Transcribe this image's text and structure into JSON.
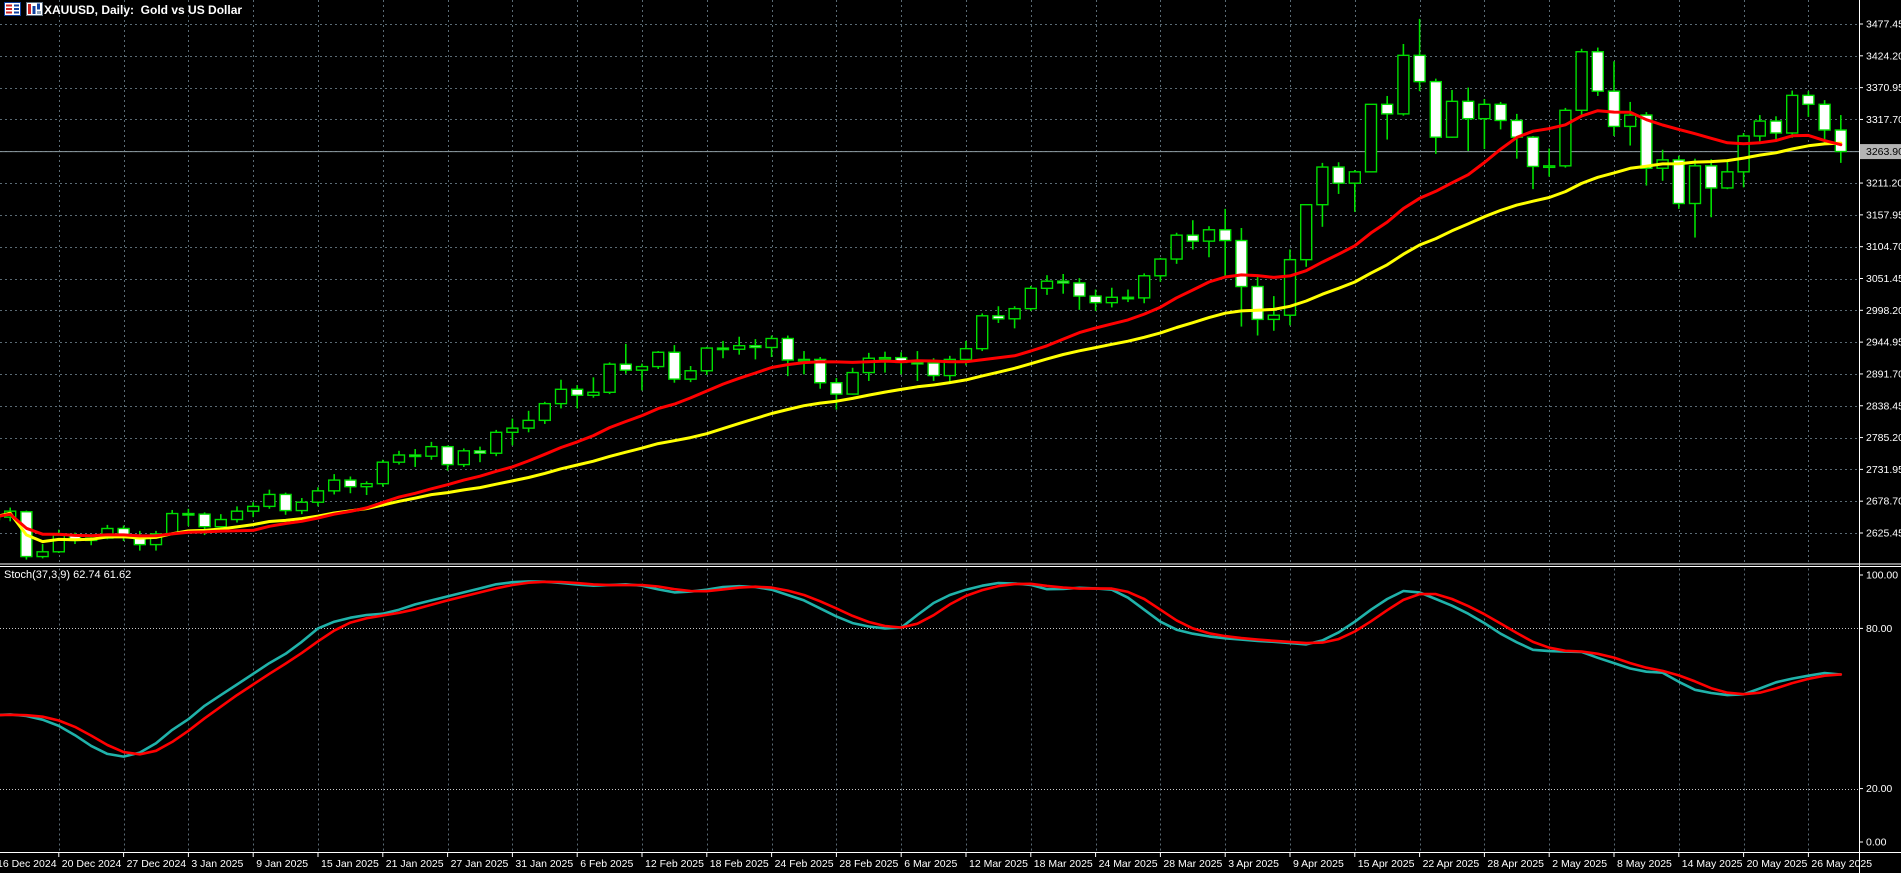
{
  "window": {
    "title": "XAUUSD, Daily:  Gold vs US Dollar",
    "symbol": "XAUUSD",
    "timeframe": "Daily",
    "description": "Gold vs US Dollar"
  },
  "colors": {
    "background": "#000000",
    "grid": "#5A6A74",
    "level_line": "#C8C8C8",
    "axis_line": "#FFFFFF",
    "axis_text": "#FFFFFF",
    "candle_border": "#00DE00",
    "bull_fill": "#000000",
    "bear_fill": "#FFFFFF",
    "ma_fast": "#FF0000",
    "ma_slow": "#FFFF00",
    "stoch_main": "#20B2AA",
    "stoch_signal": "#FF0000",
    "price_line": "#8C9AA0",
    "price_tag_bg": "#B4B4B4",
    "price_tag_text": "#000000"
  },
  "chart_data": {
    "type": "candlestick",
    "title": "XAUUSD, Daily:  Gold vs US Dollar",
    "current_price": 3263.9,
    "price_axis_labels": [
      3477.45,
      3424.2,
      3370.95,
      3317.7,
      3264.45,
      3211.2,
      3157.95,
      3104.7,
      3051.45,
      2998.2,
      2944.95,
      2891.7,
      2838.45,
      2785.2,
      2731.95,
      2678.7,
      2625.45
    ],
    "price_axis_range": [
      2625.45,
      3477.45
    ],
    "date_labels": [
      "16 Dec 2024",
      "20 Dec 2024",
      "27 Dec 2024",
      "3 Jan 2025",
      "9 Jan 2025",
      "15 Jan 2025",
      "21 Jan 2025",
      "27 Jan 2025",
      "31 Jan 2025",
      "6 Feb 2025",
      "12 Feb 2025",
      "18 Feb 2025",
      "24 Feb 2025",
      "28 Feb 2025",
      "6 Mar 2025",
      "12 Mar 2025",
      "18 Mar 2025",
      "24 Mar 2025",
      "28 Mar 2025",
      "3 Apr 2025",
      "9 Apr 2025",
      "15 Apr 2025",
      "22 Apr 2025",
      "28 Apr 2025",
      "2 May 2025",
      "8 May 2025",
      "14 May 2025",
      "20 May 2025",
      "26 May 2025"
    ],
    "date_label_indices": [
      0,
      4,
      8,
      12,
      16,
      20,
      24,
      28,
      32,
      36,
      40,
      44,
      48,
      52,
      56,
      60,
      64,
      68,
      72,
      76,
      80,
      84,
      88,
      92,
      96,
      100,
      104,
      108,
      112
    ],
    "candles_ohlc": [
      [
        2648,
        2664,
        2639,
        2652
      ],
      [
        2652,
        2668,
        2645,
        2662
      ],
      [
        2661,
        2663,
        2581,
        2586
      ],
      [
        2586,
        2607,
        2583,
        2594
      ],
      [
        2594,
        2631,
        2592,
        2622
      ],
      [
        2622,
        2626,
        2607,
        2613
      ],
      [
        2613,
        2621,
        2605,
        2617
      ],
      [
        2617,
        2639,
        2615,
        2633
      ],
      [
        2633,
        2638,
        2612,
        2621
      ],
      [
        2621,
        2629,
        2596,
        2606
      ],
      [
        2606,
        2629,
        2596,
        2624
      ],
      [
        2624,
        2664,
        2624,
        2658
      ],
      [
        2658,
        2666,
        2637,
        2657
      ],
      [
        2657,
        2660,
        2622,
        2636
      ],
      [
        2636,
        2657,
        2632,
        2648
      ],
      [
        2648,
        2670,
        2643,
        2662
      ],
      [
        2662,
        2677,
        2652,
        2670
      ],
      [
        2670,
        2698,
        2666,
        2690
      ],
      [
        2690,
        2693,
        2656,
        2663
      ],
      [
        2663,
        2684,
        2657,
        2677
      ],
      [
        2677,
        2702,
        2670,
        2696
      ],
      [
        2696,
        2724,
        2690,
        2714
      ],
      [
        2714,
        2720,
        2692,
        2703
      ],
      [
        2703,
        2712,
        2689,
        2708
      ],
      [
        2708,
        2748,
        2703,
        2744
      ],
      [
        2744,
        2763,
        2740,
        2756
      ],
      [
        2756,
        2766,
        2736,
        2754
      ],
      [
        2754,
        2778,
        2748,
        2770
      ],
      [
        2770,
        2772,
        2730,
        2740
      ],
      [
        2740,
        2767,
        2736,
        2763
      ],
      [
        2763,
        2770,
        2744,
        2759
      ],
      [
        2759,
        2798,
        2754,
        2794
      ],
      [
        2794,
        2817,
        2772,
        2801
      ],
      [
        2801,
        2830,
        2794,
        2814
      ],
      [
        2814,
        2845,
        2808,
        2842
      ],
      [
        2842,
        2882,
        2834,
        2866
      ],
      [
        2866,
        2873,
        2834,
        2856
      ],
      [
        2856,
        2886,
        2852,
        2861
      ],
      [
        2861,
        2911,
        2858,
        2908
      ],
      [
        2908,
        2942,
        2892,
        2898
      ],
      [
        2898,
        2909,
        2864,
        2904
      ],
      [
        2904,
        2930,
        2900,
        2928
      ],
      [
        2928,
        2940,
        2877,
        2883
      ],
      [
        2883,
        2905,
        2878,
        2897
      ],
      [
        2897,
        2937,
        2890,
        2935
      ],
      [
        2935,
        2947,
        2918,
        2933
      ],
      [
        2933,
        2954,
        2924,
        2939
      ],
      [
        2939,
        2950,
        2916,
        2936
      ],
      [
        2936,
        2956,
        2920,
        2951
      ],
      [
        2951,
        2956,
        2888,
        2915
      ],
      [
        2915,
        2930,
        2891,
        2916
      ],
      [
        2916,
        2920,
        2867,
        2877
      ],
      [
        2877,
        2885,
        2832,
        2858
      ],
      [
        2858,
        2902,
        2857,
        2894
      ],
      [
        2894,
        2927,
        2880,
        2918
      ],
      [
        2918,
        2929,
        2894,
        2919
      ],
      [
        2919,
        2928,
        2891,
        2911
      ],
      [
        2911,
        2930,
        2880,
        2910
      ],
      [
        2910,
        2918,
        2880,
        2889
      ],
      [
        2889,
        2922,
        2879,
        2916
      ],
      [
        2916,
        2947,
        2906,
        2934
      ],
      [
        2934,
        2993,
        2930,
        2989
      ],
      [
        2989,
        3005,
        2977,
        2984
      ],
      [
        2984,
        3005,
        2968,
        3001
      ],
      [
        3001,
        3039,
        2997,
        3035
      ],
      [
        3035,
        3057,
        3024,
        3047
      ],
      [
        3047,
        3059,
        3026,
        3044
      ],
      [
        3044,
        3052,
        2999,
        3022
      ],
      [
        3022,
        3033,
        2997,
        3011
      ],
      [
        3011,
        3036,
        3003,
        3020
      ],
      [
        3020,
        3033,
        3012,
        3019
      ],
      [
        3019,
        3060,
        3010,
        3056
      ],
      [
        3056,
        3086,
        3046,
        3084
      ],
      [
        3084,
        3128,
        3076,
        3124
      ],
      [
        3124,
        3149,
        3100,
        3114
      ],
      [
        3114,
        3139,
        3087,
        3133
      ],
      [
        3133,
        3168,
        3054,
        3115
      ],
      [
        3115,
        3136,
        2971,
        3038
      ],
      [
        3038,
        3055,
        2956,
        2983
      ],
      [
        2983,
        3022,
        2964,
        2990
      ],
      [
        2990,
        3100,
        2973,
        3083
      ],
      [
        3083,
        3176,
        3071,
        3175
      ],
      [
        3175,
        3245,
        3138,
        3238
      ],
      [
        3238,
        3246,
        3193,
        3211
      ],
      [
        3211,
        3233,
        3163,
        3230
      ],
      [
        3230,
        3343,
        3229,
        3343
      ],
      [
        3343,
        3357,
        3284,
        3327
      ],
      [
        3327,
        3444,
        3324,
        3425
      ],
      [
        3425,
        3486,
        3365,
        3381
      ],
      [
        3381,
        3386,
        3260,
        3288
      ],
      [
        3288,
        3367,
        3287,
        3348
      ],
      [
        3348,
        3371,
        3265,
        3319
      ],
      [
        3319,
        3352,
        3268,
        3343
      ],
      [
        3343,
        3347,
        3301,
        3316
      ],
      [
        3316,
        3327,
        3252,
        3288
      ],
      [
        3288,
        3290,
        3201,
        3239
      ],
      [
        3239,
        3269,
        3222,
        3240
      ],
      [
        3240,
        3337,
        3237,
        3333
      ],
      [
        3333,
        3436,
        3322,
        3431
      ],
      [
        3431,
        3438,
        3357,
        3365
      ],
      [
        3365,
        3415,
        3290,
        3306
      ],
      [
        3306,
        3347,
        3274,
        3325
      ],
      [
        3325,
        3330,
        3207,
        3236
      ],
      [
        3236,
        3267,
        3215,
        3250
      ],
      [
        3250,
        3257,
        3168,
        3177
      ],
      [
        3177,
        3252,
        3120,
        3240
      ],
      [
        3240,
        3251,
        3154,
        3203
      ],
      [
        3203,
        3249,
        3201,
        3230
      ],
      [
        3230,
        3295,
        3204,
        3290
      ],
      [
        3290,
        3325,
        3281,
        3315
      ],
      [
        3315,
        3323,
        3280,
        3295
      ],
      [
        3295,
        3366,
        3287,
        3358
      ],
      [
        3358,
        3365,
        3322,
        3343
      ],
      [
        3343,
        3350,
        3276,
        3300
      ],
      [
        3300,
        3325,
        3245,
        3264
      ]
    ],
    "overlays": {
      "ma_fast": {
        "name": "moving-average-fast",
        "method": "sma",
        "period": 15,
        "color": "#FF0000"
      },
      "ma_slow": {
        "name": "moving-average-slow",
        "method": "wma",
        "period": 45,
        "color": "#FFFF00"
      }
    },
    "indicator": {
      "label": "Stoch(37,3,9) 62.74 61.62",
      "name": "Stoch",
      "params": "(37,3,9)",
      "main_value": 62.74,
      "signal_value": 61.62,
      "axis_labels": [
        100.0,
        80.0,
        20.0,
        0.0
      ],
      "levels": [
        80.0,
        20.0
      ],
      "range": [
        0,
        100
      ],
      "signal_period": 3,
      "main": [
        47.5,
        47.8,
        47.2,
        45.8,
        43.5,
        40.0,
        36.0,
        33.0,
        32.0,
        33.5,
        37.0,
        42.0,
        46.0,
        51.0,
        55.0,
        59.0,
        63.0,
        67.0,
        70.5,
        75.0,
        80.0,
        82.5,
        84.0,
        85.0,
        85.5,
        87.0,
        89.0,
        90.5,
        92.0,
        93.5,
        95.0,
        96.5,
        97.3,
        97.6,
        97.5,
        97.0,
        96.4,
        96.0,
        96.2,
        96.5,
        96.0,
        94.6,
        93.5,
        93.8,
        94.5,
        95.5,
        95.8,
        95.5,
        94.5,
        92.5,
        90.5,
        87.5,
        84.5,
        82.0,
        80.7,
        80.0,
        80.3,
        85.0,
        89.5,
        92.5,
        94.5,
        96.0,
        97.0,
        96.8,
        96.3,
        94.7,
        94.8,
        95.2,
        95.0,
        94.5,
        91.5,
        87.0,
        82.5,
        79.5,
        78.0,
        77.0,
        76.3,
        75.8,
        75.3,
        75.0,
        74.5,
        74.0,
        75.5,
        78.5,
        82.5,
        87.0,
        91.0,
        94.0,
        93.5,
        91.0,
        88.5,
        85.5,
        82.0,
        78.0,
        74.8,
        72.0,
        71.5,
        71.3,
        71.2,
        69.0,
        67.0,
        65.0,
        63.8,
        63.4,
        60.0,
        57.0,
        55.8,
        55.0,
        55.3,
        57.5,
        59.8,
        61.2,
        62.3,
        63.3,
        62.74
      ]
    }
  }
}
